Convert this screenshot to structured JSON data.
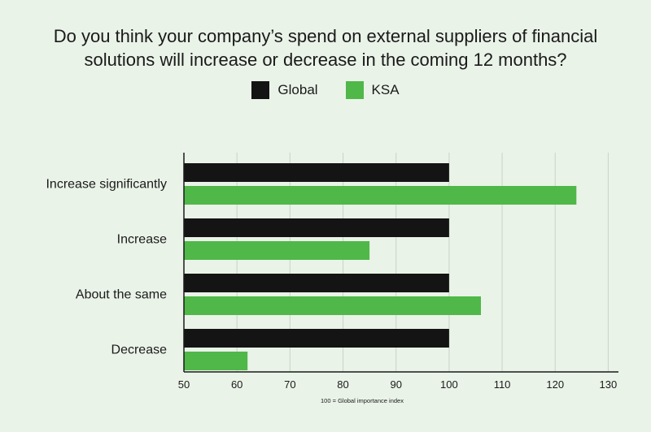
{
  "chart_data": {
    "type": "bar",
    "orientation": "horizontal",
    "title_lines": [
      "Do you think your company’s spend on external suppliers of financial",
      "solutions will increase or decrease in the coming 12 months?"
    ],
    "categories": [
      "Increase significantly",
      "Increase",
      "About the same",
      "Decrease"
    ],
    "series": [
      {
        "name": "Global",
        "color": "#141414",
        "values": [
          100,
          100,
          100,
          100
        ]
      },
      {
        "name": "KSA",
        "color": "#4fb848",
        "values": [
          124,
          85,
          106,
          62
        ]
      }
    ],
    "xlim": [
      50,
      135
    ],
    "xticks": [
      50,
      60,
      70,
      80,
      90,
      100,
      110,
      120,
      130
    ],
    "grid": true,
    "legend_position": "top-center",
    "footnote": "100 = Global importance index"
  }
}
